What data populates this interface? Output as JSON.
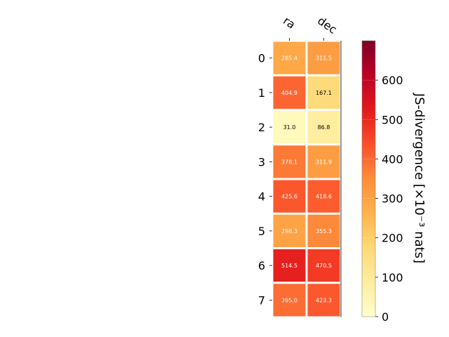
{
  "chart_data": {
    "type": "heatmap",
    "title": "",
    "columns": [
      "ra",
      "dec"
    ],
    "rows": [
      "0",
      "1",
      "2",
      "3",
      "4",
      "5",
      "6",
      "7"
    ],
    "values": [
      [
        285.4,
        311.5
      ],
      [
        404.9,
        167.1
      ],
      [
        31.0,
        86.8
      ],
      [
        378.1,
        311.9
      ],
      [
        425.6,
        418.6
      ],
      [
        298.3,
        355.3
      ],
      [
        514.5,
        470.5
      ],
      [
        395.0,
        423.3
      ]
    ],
    "value_labels": [
      [
        "285.4",
        "311.5"
      ],
      [
        "404.9",
        "167.1"
      ],
      [
        "31.0",
        "86.8"
      ],
      [
        "378.1",
        "311.9"
      ],
      [
        "425.6",
        "418.6"
      ],
      [
        "298.3",
        "355.3"
      ],
      [
        "514.5",
        "470.5"
      ],
      [
        "395.0",
        "423.3"
      ]
    ],
    "colorbar": {
      "label": "JS-divergence [×10⁻³ nats]",
      "min": 0,
      "max": 700,
      "ticks": [
        0,
        100,
        200,
        300,
        400,
        500,
        600
      ],
      "colormap": "YlOrRd"
    }
  }
}
